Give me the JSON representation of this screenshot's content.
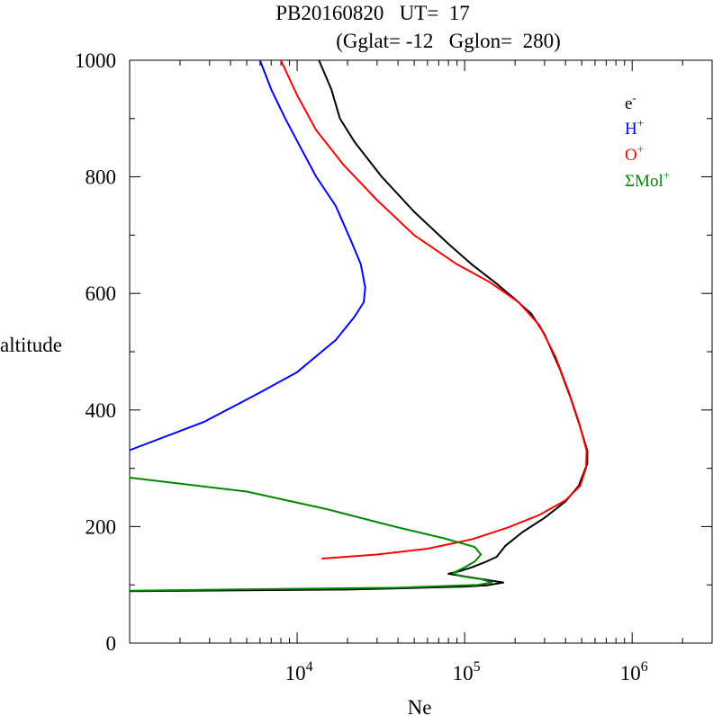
{
  "title_line1": "PB20160820   UT=  17",
  "title_line2": "(Gglat= -12   Gglon=  280)",
  "chart_data": {
    "type": "line",
    "xlabel": "Ne",
    "ylabel": "altitude",
    "xscale": "log",
    "xlim": [
      1000,
      3000000
    ],
    "ylim": [
      0,
      1000
    ],
    "xticks_major": [
      {
        "value": 10000,
        "base": "10",
        "exp": "4"
      },
      {
        "value": 100000,
        "base": "10",
        "exp": "5"
      },
      {
        "value": 1000000,
        "base": "10",
        "exp": "6"
      }
    ],
    "yticks_major": [
      {
        "value": 0,
        "label": "0"
      },
      {
        "value": 200,
        "label": "200"
      },
      {
        "value": 400,
        "label": "400"
      },
      {
        "value": 600,
        "label": "600"
      },
      {
        "value": 800,
        "label": "800"
      },
      {
        "value": 1000,
        "label": "1000"
      }
    ],
    "legend_position": "top-right",
    "series": [
      {
        "key": "electron",
        "name": "e",
        "sup": "-",
        "color": "#000000",
        "points": [
          [
            1000,
            89
          ],
          [
            20000,
            92
          ],
          [
            40000,
            94
          ],
          [
            100000,
            97
          ],
          [
            135000,
            99
          ],
          [
            170000,
            104
          ],
          [
            80000,
            119
          ],
          [
            95000,
            124
          ],
          [
            110000,
            130
          ],
          [
            130000,
            138
          ],
          [
            155000,
            148
          ],
          [
            175000,
            167
          ],
          [
            220000,
            190
          ],
          [
            300000,
            215
          ],
          [
            400000,
            243
          ],
          [
            480000,
            270
          ],
          [
            540000,
            308
          ],
          [
            540000,
            330
          ],
          [
            490000,
            370
          ],
          [
            430000,
            420
          ],
          [
            370000,
            470
          ],
          [
            300000,
            530
          ],
          [
            250000,
            565
          ],
          [
            200000,
            590
          ],
          [
            150000,
            620
          ],
          [
            110000,
            650
          ],
          [
            80000,
            685
          ],
          [
            50000,
            740
          ],
          [
            32000,
            800
          ],
          [
            22000,
            860
          ],
          [
            18000,
            900
          ],
          [
            16000,
            950
          ],
          [
            13500,
            1000
          ]
        ]
      },
      {
        "key": "hplus",
        "name": "H",
        "sup": "+",
        "color": "#0000ff",
        "points": [
          [
            1000,
            331
          ],
          [
            2800,
            380
          ],
          [
            6000,
            430
          ],
          [
            10000,
            465
          ],
          [
            14000,
            500
          ],
          [
            17000,
            520
          ],
          [
            22000,
            560
          ],
          [
            25000,
            585
          ],
          [
            25500,
            610
          ],
          [
            24000,
            650
          ],
          [
            21000,
            690
          ],
          [
            17000,
            750
          ],
          [
            13000,
            800
          ],
          [
            10500,
            850
          ],
          [
            8500,
            900
          ],
          [
            7000,
            950
          ],
          [
            6000,
            1000
          ]
        ]
      },
      {
        "key": "oplus",
        "name": "O",
        "sup": "+",
        "color": "#ff0000",
        "points": [
          [
            14000,
            145
          ],
          [
            30000,
            152
          ],
          [
            60000,
            162
          ],
          [
            110000,
            178
          ],
          [
            180000,
            198
          ],
          [
            280000,
            220
          ],
          [
            400000,
            245
          ],
          [
            490000,
            270
          ],
          [
            530000,
            300
          ],
          [
            535000,
            330
          ],
          [
            480000,
            380
          ],
          [
            420000,
            430
          ],
          [
            350000,
            490
          ],
          [
            280000,
            545
          ],
          [
            210000,
            585
          ],
          [
            140000,
            620
          ],
          [
            90000,
            650
          ],
          [
            50000,
            700
          ],
          [
            30000,
            760
          ],
          [
            19000,
            820
          ],
          [
            13000,
            880
          ],
          [
            10000,
            940
          ],
          [
            8000,
            1000
          ]
        ]
      },
      {
        "key": "molplus",
        "name": "ΣMol",
        "sup": "+",
        "color": "#008800",
        "points": [
          [
            1000,
            284
          ],
          [
            5000,
            260
          ],
          [
            15000,
            230
          ],
          [
            38000,
            200
          ],
          [
            75000,
            180
          ],
          [
            115000,
            165
          ],
          [
            125000,
            152
          ],
          [
            115000,
            140
          ],
          [
            100000,
            130
          ],
          [
            85000,
            120
          ],
          [
            95000,
            115
          ],
          [
            125000,
            110
          ],
          [
            145000,
            104
          ],
          [
            120000,
            100
          ],
          [
            40000,
            95
          ],
          [
            8000,
            93
          ],
          [
            1000,
            90
          ]
        ]
      }
    ]
  }
}
